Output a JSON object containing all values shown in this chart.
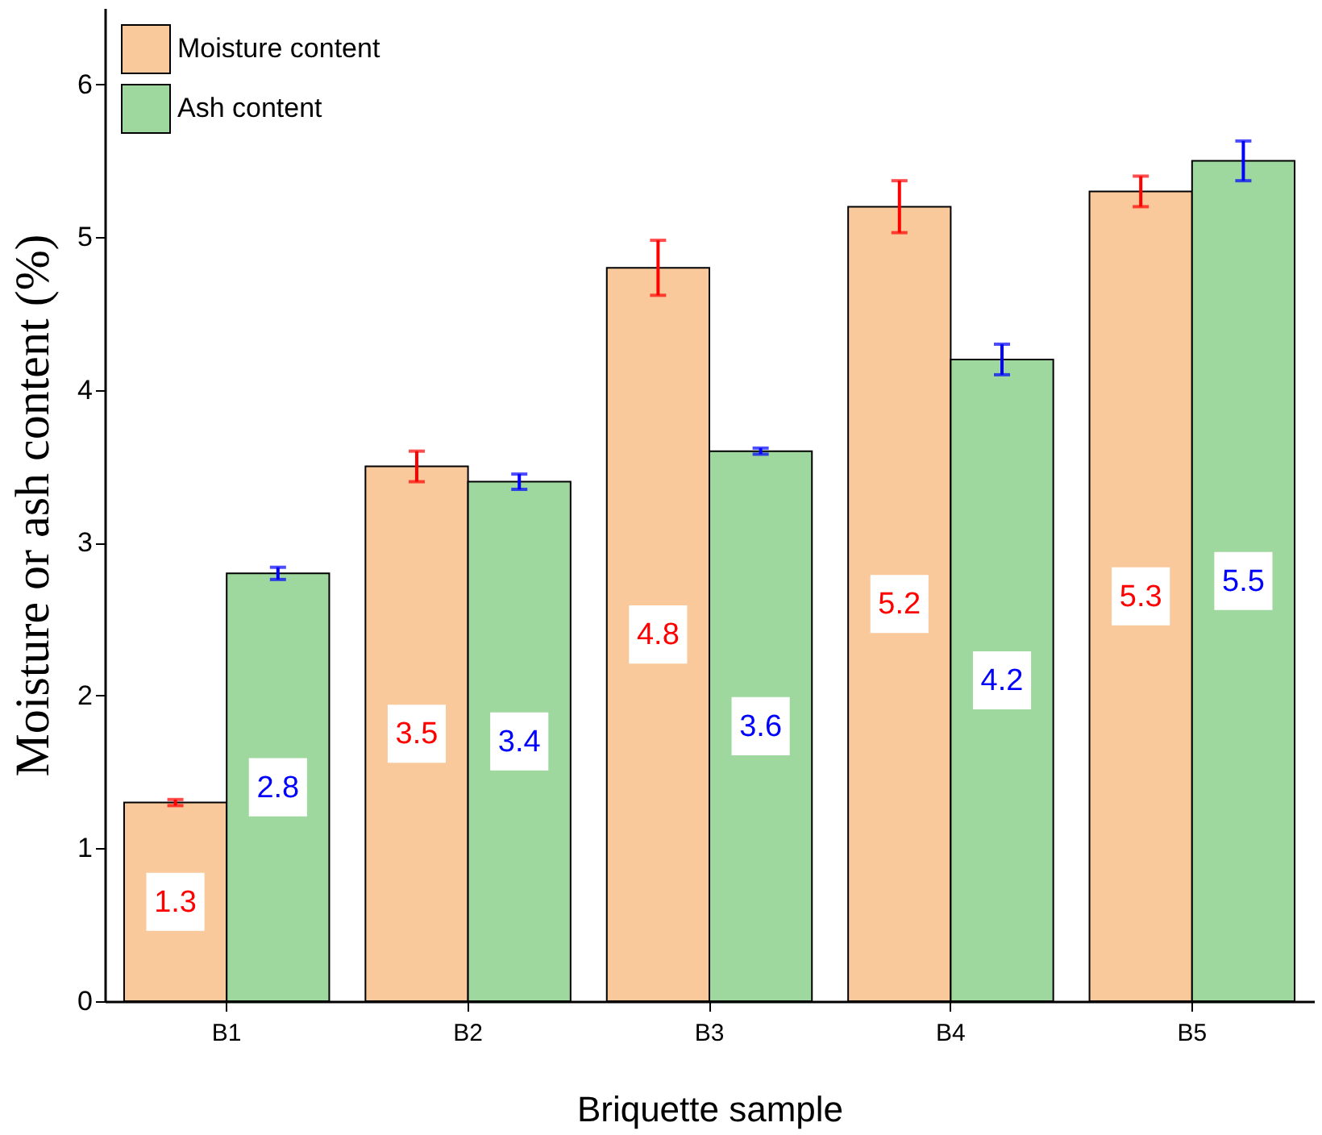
{
  "chart_data": {
    "type": "bar",
    "xlabel": "Briquette sample",
    "ylabel": "Moisture or ash content (%)",
    "categories": [
      "B1",
      "B2",
      "B3",
      "B4",
      "B5"
    ],
    "series": [
      {
        "name": "Moisture content",
        "color": "#f9c99b",
        "values": [
          1.3,
          3.5,
          4.8,
          5.2,
          5.3
        ],
        "errors": [
          0.02,
          0.1,
          0.18,
          0.17,
          0.1
        ]
      },
      {
        "name": "Ash content",
        "color": "#9fd89f",
        "values": [
          2.8,
          3.4,
          3.6,
          4.2,
          5.5
        ],
        "errors": [
          0.04,
          0.05,
          0.02,
          0.1,
          0.13
        ]
      }
    ],
    "ylim": [
      0,
      6.5
    ],
    "yticks": [
      0,
      1,
      2,
      3,
      4,
      5,
      6
    ],
    "grid": false,
    "legend": "top left",
    "data_labels": true
  }
}
